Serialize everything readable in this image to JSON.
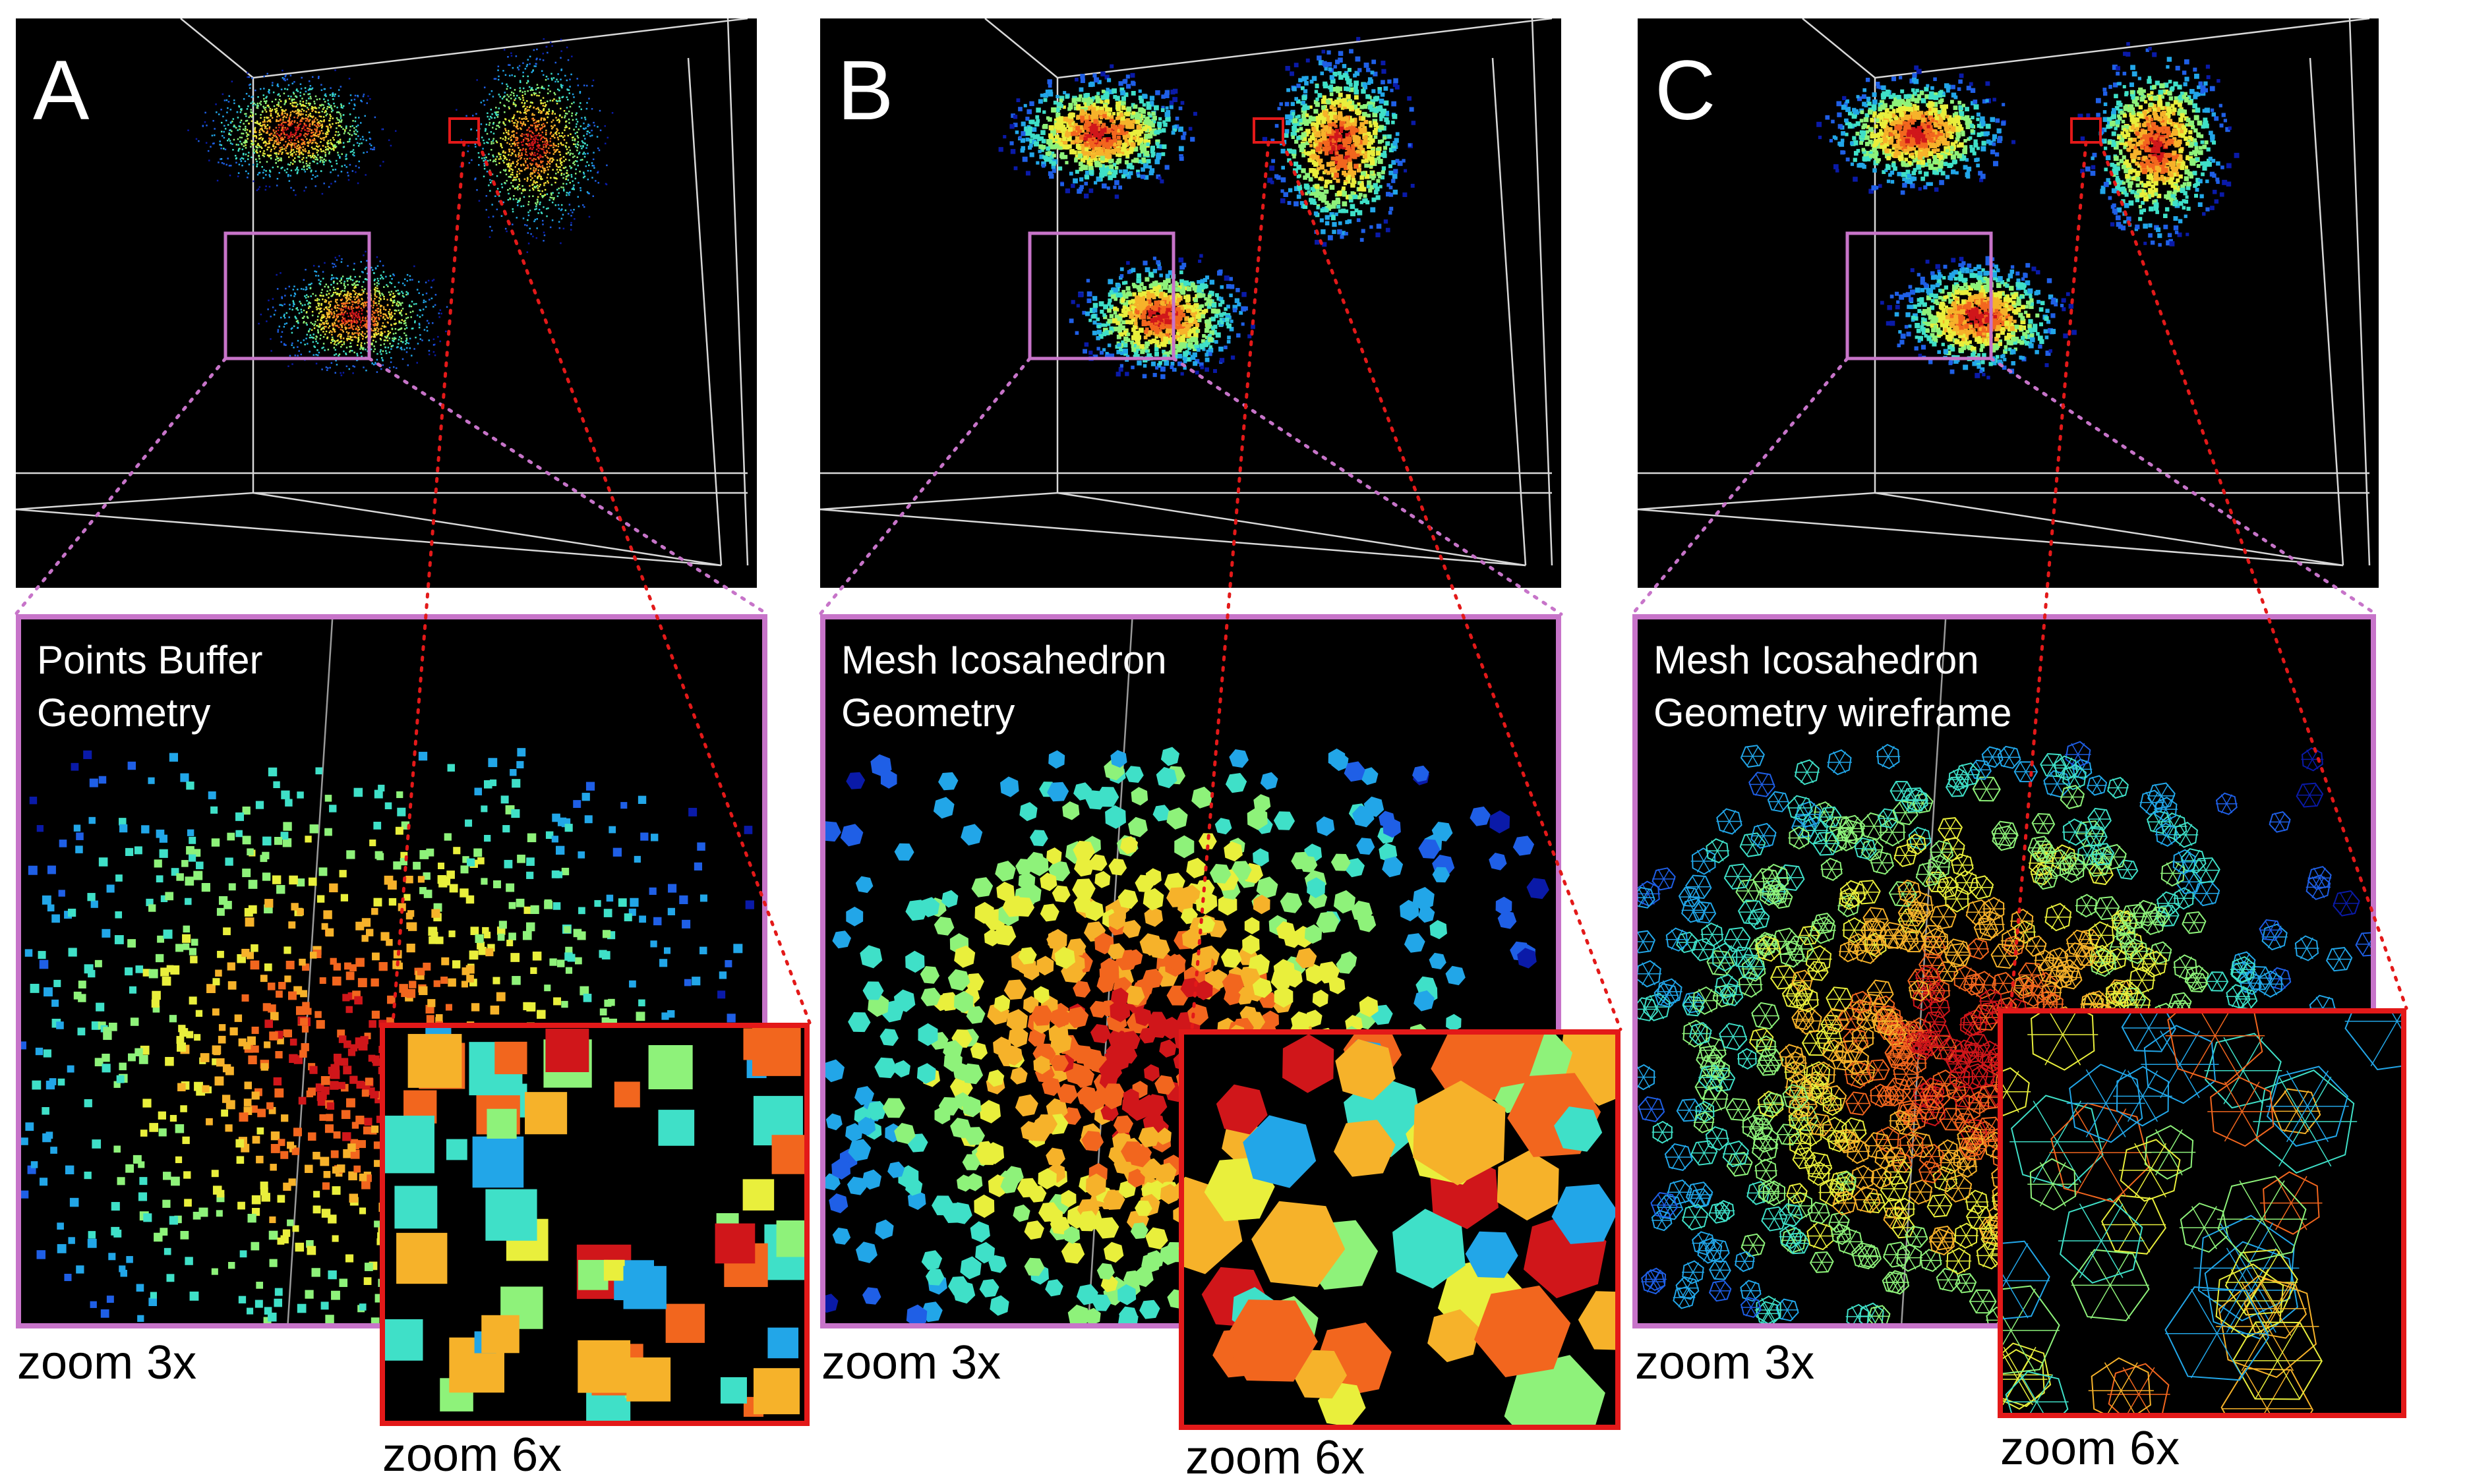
{
  "panels": [
    {
      "letter": "A",
      "label_line1": "Points Buffer",
      "label_line2": "Geometry",
      "zoom3_label": "zoom 3x",
      "zoom6_label": "zoom 6x",
      "style": "points"
    },
    {
      "letter": "B",
      "label_line1": "Mesh Icosahedron",
      "label_line2": "Geometry",
      "zoom3_label": "zoom 3x",
      "zoom6_label": "zoom 6x",
      "style": "mesh"
    },
    {
      "letter": "C",
      "label_line1": "Mesh Icosahedron",
      "label_line2": "Geometry wireframe",
      "zoom3_label": "zoom 3x",
      "zoom6_label": "zoom 6x",
      "style": "wireframe"
    }
  ],
  "colors": {
    "magenta_box": "#c774c9",
    "red_box": "#e31919",
    "colormap": [
      "#0a1aa8",
      "#1f5fe6",
      "#22a6e8",
      "#3fe0c8",
      "#8ef27a",
      "#e9ef3c",
      "#f6b22a",
      "#f2661e",
      "#d0161a"
    ]
  }
}
